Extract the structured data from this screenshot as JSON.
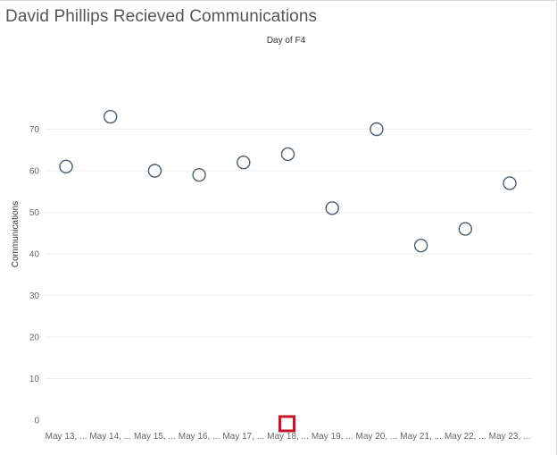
{
  "chart_data": {
    "type": "scatter",
    "title": "David Phillips Recieved Communications",
    "column_header": "Day of F4",
    "ylabel": "Communications",
    "ylim": [
      0,
      80
    ],
    "yticks": [
      0,
      10,
      20,
      30,
      40,
      50,
      60,
      70
    ],
    "categories": [
      "May 13, ...",
      "May 14, ...",
      "May 15, ...",
      "May 16, ...",
      "May 17, ...",
      "May 18, ...",
      "May 19, ...",
      "May 20, ...",
      "May 21, ...",
      "May 22, ...",
      "May 23, ..."
    ],
    "series": [
      {
        "values": [
          61,
          73,
          60,
          59,
          62,
          64,
          51,
          70,
          42,
          46,
          57
        ]
      }
    ],
    "marker": "open-circle",
    "marker_color": "#4e5d6c",
    "highlight": {
      "category": "May 18, ...",
      "value": 0,
      "marker": "square",
      "color": "#c0172a"
    },
    "grid": true
  }
}
